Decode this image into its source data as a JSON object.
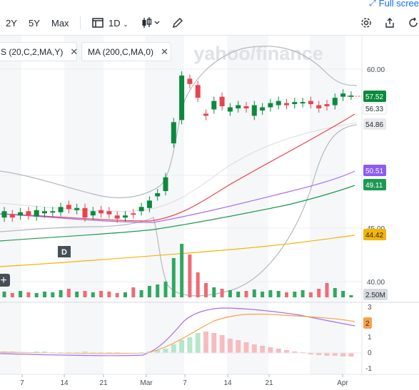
{
  "fullscreen": {
    "label": "Full scree",
    "icon": "expand-arrows-icon"
  },
  "toolbar": {
    "ranges": [
      "2Y",
      "5Y",
      "Max"
    ],
    "interval": "1D",
    "icons": [
      "chart-type-icon",
      "candlestick-icon",
      "draw-pencil-icon",
      "settings-gear-icon",
      "share-icon",
      "reset-icon"
    ]
  },
  "indicators": [
    {
      "label": "S (20,C,2,MA,Y)"
    },
    {
      "label": "MA (200,C,MA,0)"
    }
  ],
  "watermark": "yahoo/finance",
  "price_axis": {
    "ticks": [
      "60.00",
      "45.00",
      "40.00"
    ],
    "tags": [
      {
        "text": "57.52",
        "bg": "#0a8a3e",
        "fg": "#ffffff"
      },
      {
        "text": "56.33",
        "bg": "#ffffff",
        "fg": "#232a31"
      },
      {
        "text": "54.86",
        "bg": "#e8eaed",
        "fg": "#232a31"
      },
      {
        "text": "50.51",
        "bg": "#8c5cf6",
        "fg": "#ffffff"
      },
      {
        "text": "49.11",
        "bg": "#1a9a52",
        "fg": "#ffffff"
      },
      {
        "text": "44.42",
        "bg": "#f5b400",
        "fg": "#232a31"
      },
      {
        "text": "2.50M",
        "bg": "#d7dade",
        "fg": "#232a31"
      }
    ]
  },
  "macd_axis": {
    "ticks": [
      "3",
      "1",
      "0",
      "-1"
    ],
    "tag": {
      "text": "2",
      "bg": "#f7a24b"
    }
  },
  "date_axis": [
    "7",
    "14",
    "21",
    "Mar",
    "7",
    "14",
    "21",
    "Apr"
  ],
  "marker_label": "D",
  "colors": {
    "up": "#0a8a3e",
    "down": "#e8444f",
    "ma_red": "#e8444f",
    "ma_purple": "#a86ef0",
    "ma_green": "#1a9a52",
    "ma_yellow": "#f5b400",
    "band": "#b4b8bd"
  },
  "chart_data": {
    "type": "candlestick",
    "price_ticks": [
      60,
      45,
      40
    ],
    "last_price": 57.52,
    "candles": [
      {
        "o": 46.0,
        "c": 46.6
      },
      {
        "o": 46.3,
        "c": 46.0
      },
      {
        "o": 46.2,
        "c": 46.5
      },
      {
        "o": 46.6,
        "c": 46.2
      },
      {
        "o": 46.1,
        "c": 46.7
      },
      {
        "o": 46.4,
        "c": 46.6
      },
      {
        "o": 46.5,
        "c": 46.6
      },
      {
        "o": 46.5,
        "c": 47.0
      },
      {
        "o": 47.2,
        "c": 46.8
      },
      {
        "o": 46.7,
        "c": 46.9
      },
      {
        "o": 46.9,
        "c": 46.0
      },
      {
        "o": 46.2,
        "c": 46.6
      },
      {
        "o": 46.7,
        "c": 46.4
      },
      {
        "o": 46.6,
        "c": 46.3
      },
      {
        "o": 46.2,
        "c": 45.9
      },
      {
        "o": 46.0,
        "c": 46.2
      },
      {
        "o": 46.4,
        "c": 46.3
      },
      {
        "o": 46.6,
        "c": 47.0
      },
      {
        "o": 46.9,
        "c": 47.6
      },
      {
        "o": 48.0,
        "c": 48.3
      },
      {
        "o": 48.5,
        "c": 49.8
      },
      {
        "o": 53.0,
        "c": 55.0
      },
      {
        "o": 55.2,
        "c": 59.4
      },
      {
        "o": 59.1,
        "c": 58.6
      },
      {
        "o": 58.5,
        "c": 57.3
      },
      {
        "o": 55.8,
        "c": 55.6
      },
      {
        "o": 56.2,
        "c": 57.0
      },
      {
        "o": 57.4,
        "c": 56.5
      },
      {
        "o": 56.0,
        "c": 56.4
      },
      {
        "o": 56.3,
        "c": 56.6
      },
      {
        "o": 56.5,
        "c": 56.3
      },
      {
        "o": 55.6,
        "c": 56.6
      },
      {
        "o": 56.1,
        "c": 56.4
      },
      {
        "o": 56.4,
        "c": 56.8
      },
      {
        "o": 56.6,
        "c": 57.0
      },
      {
        "o": 56.8,
        "c": 56.6
      },
      {
        "o": 56.7,
        "c": 56.9
      },
      {
        "o": 56.8,
        "c": 56.9
      },
      {
        "o": 57.0,
        "c": 56.7
      },
      {
        "o": 56.6,
        "c": 56.3
      },
      {
        "o": 56.7,
        "c": 56.5
      },
      {
        "o": 56.6,
        "c": 57.3
      },
      {
        "o": 57.4,
        "c": 57.7
      },
      {
        "o": 57.5,
        "c": 57.52
      }
    ],
    "macd_ticks": [
      3,
      1,
      0,
      -1
    ]
  }
}
